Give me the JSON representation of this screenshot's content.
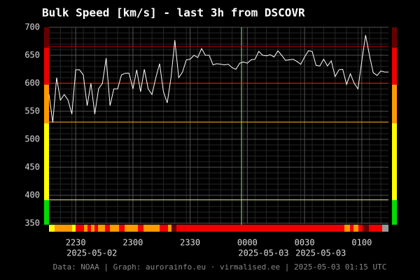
{
  "chart_data": {
    "type": "line",
    "title": "Bulk Speed [km/s] - last 3h from DSCOVR",
    "footer": "Data: NOAA | Graph: aurorainfo.eu · virmalised.ee | 2025-05-03 01:15 UTC",
    "categories": [
      null,
      null,
      null,
      null,
      null,
      null,
      null,
      "2230",
      null,
      null,
      null,
      null,
      null,
      null,
      null,
      null,
      null,
      null,
      null,
      null,
      null,
      null,
      "2300",
      null,
      null,
      null,
      null,
      null,
      null,
      null,
      null,
      null,
      null,
      null,
      null,
      null,
      null,
      "2330",
      null,
      null,
      null,
      null,
      null,
      null,
      null,
      null,
      null,
      null,
      null,
      null,
      null,
      null,
      "0000",
      null,
      null,
      null,
      null,
      null,
      null,
      null,
      null,
      null,
      null,
      null,
      null,
      null,
      null,
      "0030",
      null,
      null,
      null,
      null,
      null,
      null,
      null,
      null,
      null,
      null,
      null,
      null,
      null,
      null,
      "0100",
      null,
      null,
      null,
      null,
      null,
      null,
      null
    ],
    "date_labels": [
      "2025-05-02",
      "2025-05-03",
      "2025-05-03"
    ],
    "values": [
      580,
      530,
      610,
      570,
      580,
      570,
      545,
      624,
      624,
      615,
      560,
      600,
      545,
      590,
      600,
      645,
      560,
      590,
      590,
      615,
      618,
      618,
      590,
      624,
      585,
      625,
      590,
      580,
      610,
      635,
      585,
      565,
      611,
      677,
      610,
      620,
      642,
      643,
      650,
      646,
      662,
      650,
      650,
      633,
      635,
      634,
      633,
      634,
      628,
      625,
      636,
      638,
      636,
      642,
      643,
      657,
      650,
      649,
      651,
      647,
      658,
      650,
      641,
      642,
      643,
      639,
      634,
      647,
      658,
      657,
      632,
      631,
      643,
      631,
      640,
      612,
      624,
      625,
      598,
      617,
      600,
      590,
      640,
      686,
      650,
      619,
      614,
      622,
      620,
      620
    ],
    "color": "#ffffff",
    "ylim": [
      350,
      700
    ],
    "yticks": [
      350,
      400,
      450,
      500,
      550,
      600,
      650,
      700
    ],
    "grid": true,
    "thresholds": [
      {
        "value": 666,
        "color": "#b00000"
      },
      {
        "value": 600,
        "color": "#ff2020"
      },
      {
        "value": 531,
        "color": "#ff9900"
      },
      {
        "value": 392,
        "color": "#e0e070"
      }
    ],
    "bands": [
      {
        "from": 350,
        "to": 394,
        "color": "#00dd00"
      },
      {
        "from": 394,
        "to": 531,
        "color": "#ffff00"
      },
      {
        "from": 531,
        "to": 600,
        "color": "#ff9900"
      },
      {
        "from": 600,
        "to": 666,
        "color": "#ee0000"
      },
      {
        "from": 666,
        "to": 700,
        "color": "#660000"
      }
    ]
  }
}
